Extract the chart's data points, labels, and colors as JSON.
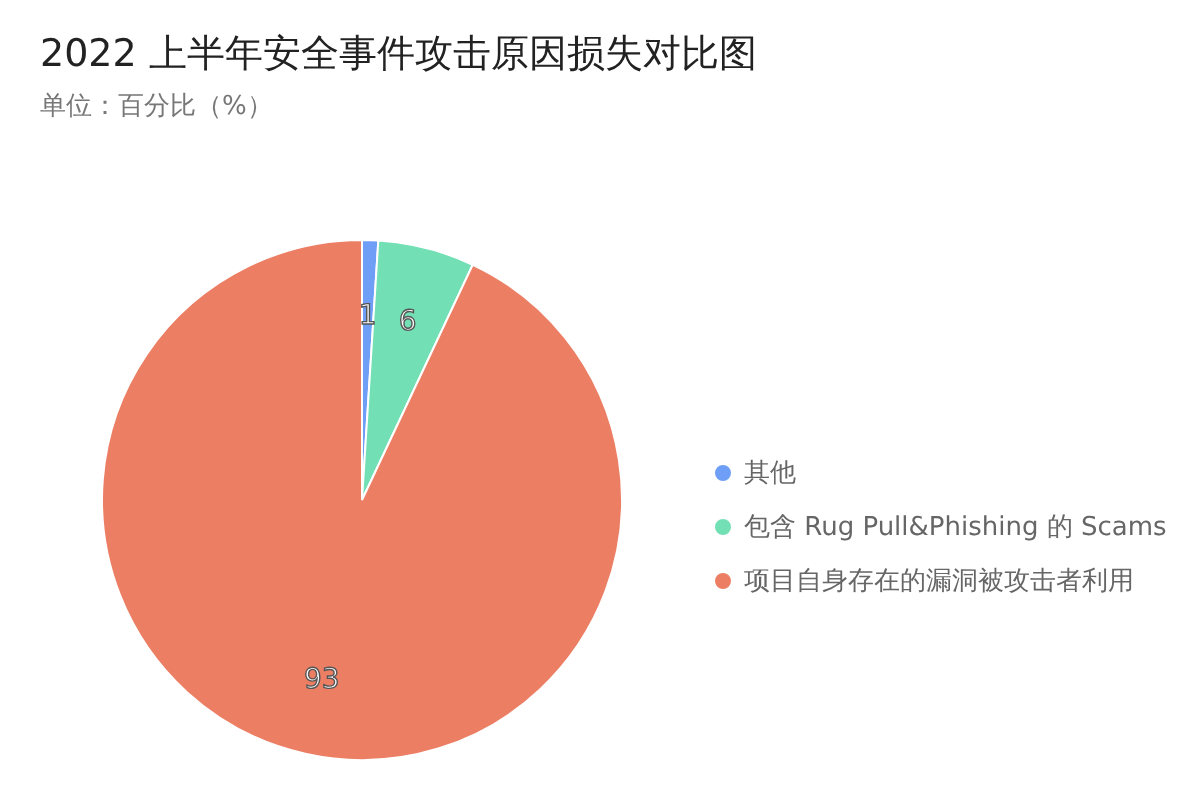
{
  "chart_data": {
    "type": "pie",
    "title": "2022 上半年安全事件攻击原因损失对比图",
    "subtitle": "单位：百分比（%）",
    "categories": [
      "其他",
      "包含 Rug Pull&Phishing 的 Scams",
      "项目自身存在的漏洞被攻击者利用"
    ],
    "values": [
      1,
      6,
      93
    ],
    "colors": [
      "#6e9ef5",
      "#72dfb5",
      "#ec7e64"
    ],
    "data_labels": true,
    "legend": "right"
  }
}
